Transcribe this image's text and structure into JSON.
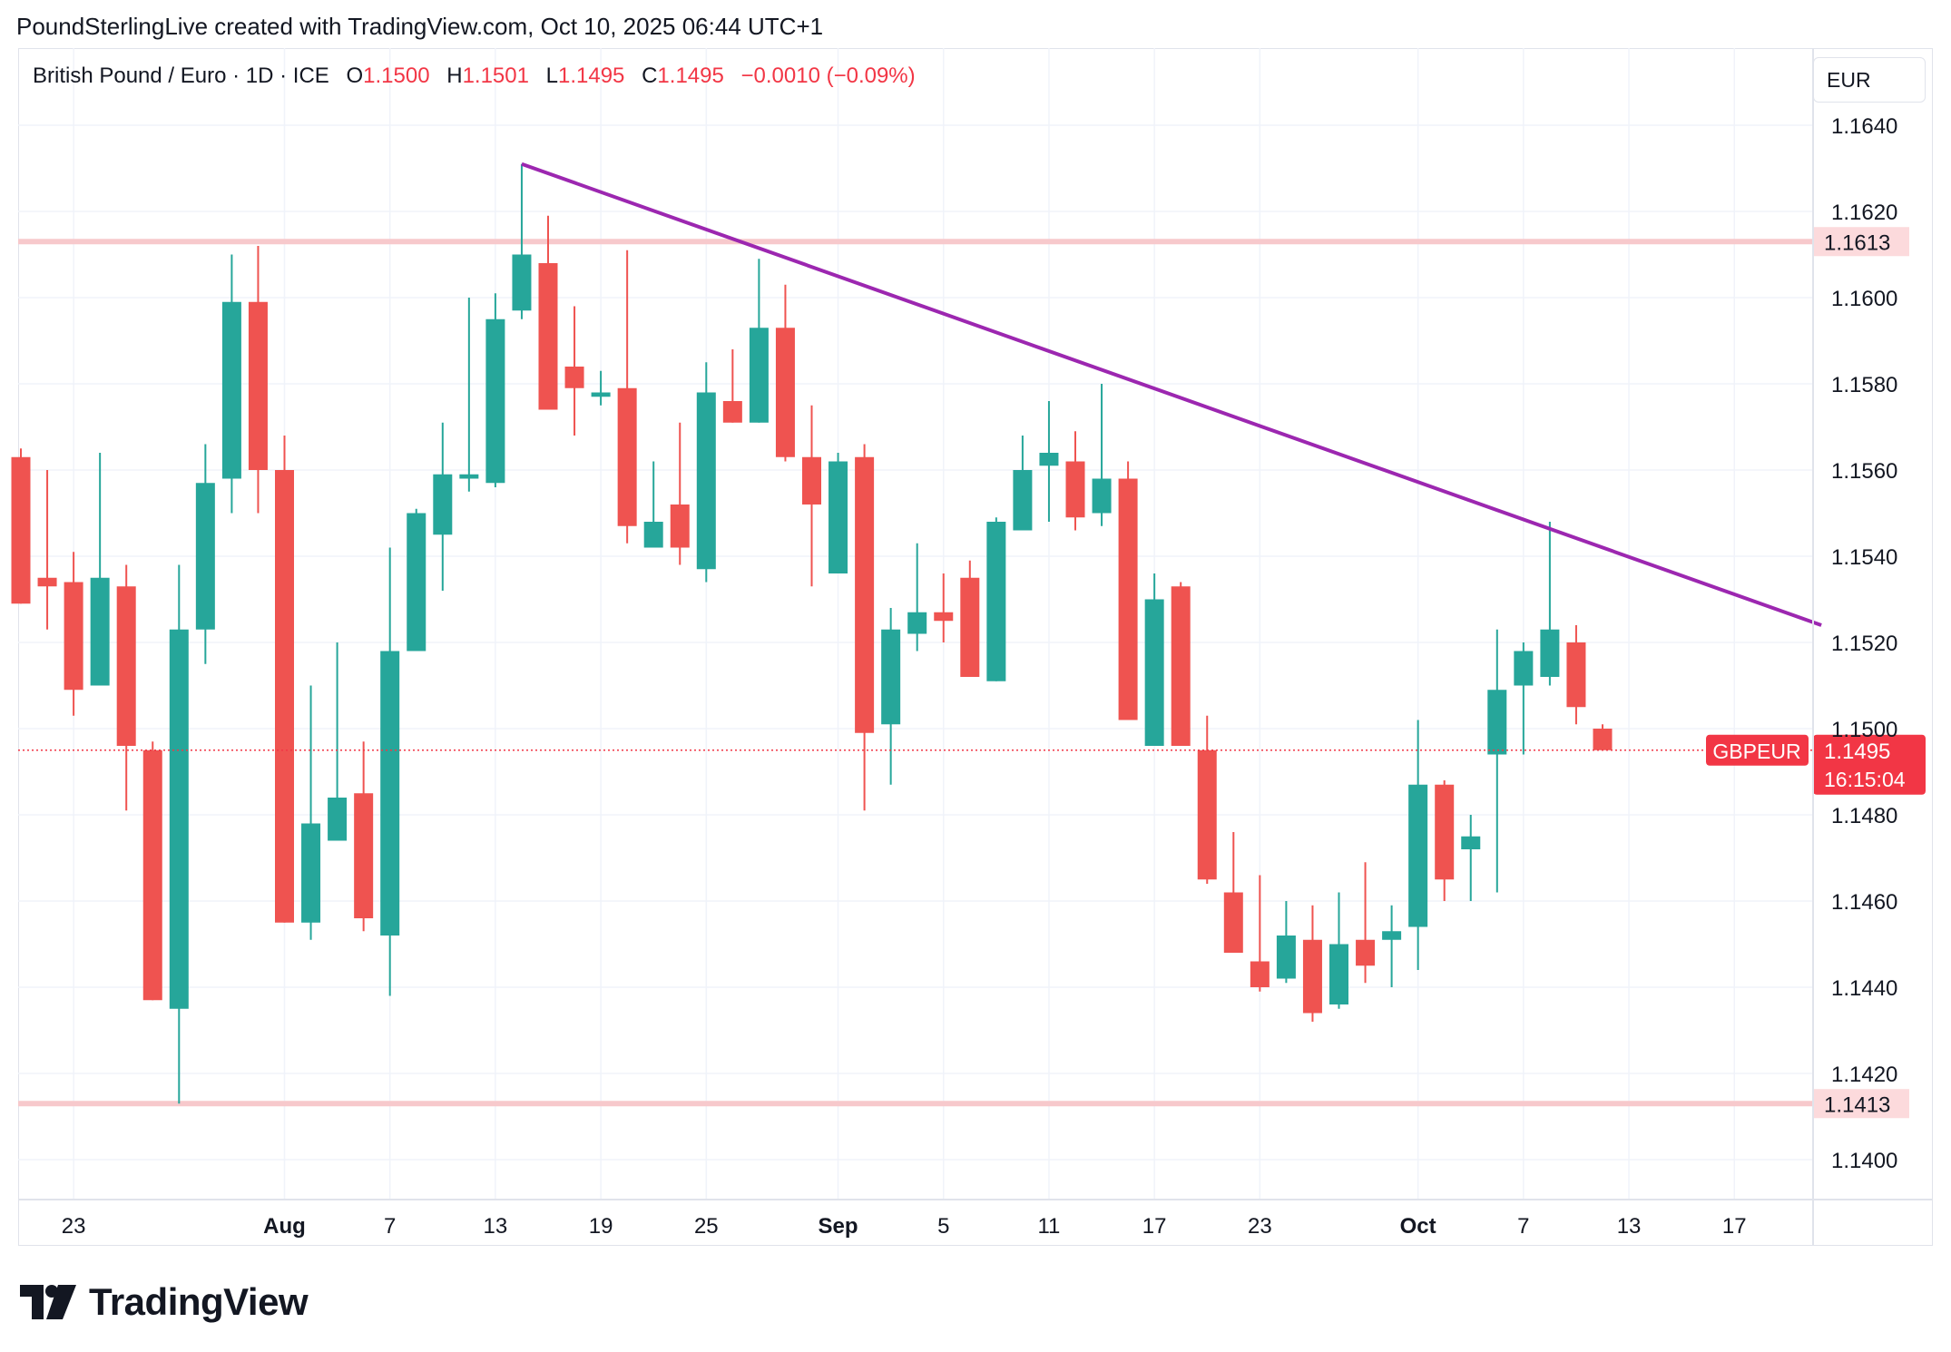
{
  "header": {
    "credit": "PoundSterlingLive created with TradingView.com, Oct 10, 2025 06:44 UTC+1"
  },
  "legend": {
    "symbol": "British Pound / Euro · 1D · ICE",
    "o_label": "O",
    "o_value": "1.1500",
    "h_label": "H",
    "h_value": "1.1501",
    "l_label": "L",
    "l_value": "1.1495",
    "c_label": "C",
    "c_value": "1.1495",
    "change": "−0.0010 (−0.09%)"
  },
  "currency_label": "EUR",
  "colors": {
    "up": "#26a69a",
    "down": "#ef5350",
    "trendline": "#9c27b0",
    "level": "#f7c9cc",
    "level_label_bg": "#fcdadc",
    "price_label_bg": "#f23645"
  },
  "footer": {
    "brand": "TradingView"
  },
  "chart_data": {
    "type": "candlestick",
    "title": "British Pound / Euro · 1D · ICE",
    "ylim": [
      1.139,
      1.165
    ],
    "y_ticks": [
      "1.1640",
      "1.1620",
      "1.1600",
      "1.1580",
      "1.1560",
      "1.1540",
      "1.1520",
      "1.1500",
      "1.1480",
      "1.1460",
      "1.1440",
      "1.1420",
      "1.1400"
    ],
    "y_tick_values": [
      1.164,
      1.162,
      1.16,
      1.158,
      1.156,
      1.154,
      1.152,
      1.15,
      1.148,
      1.146,
      1.144,
      1.142,
      1.14
    ],
    "x_ticks": [
      {
        "label": "23",
        "bold": false,
        "bar": 2
      },
      {
        "label": "Aug",
        "bold": true,
        "bar": 10
      },
      {
        "label": "7",
        "bold": false,
        "bar": 14
      },
      {
        "label": "13",
        "bold": false,
        "bar": 18
      },
      {
        "label": "19",
        "bold": false,
        "bar": 22
      },
      {
        "label": "25",
        "bold": false,
        "bar": 26
      },
      {
        "label": "Sep",
        "bold": true,
        "bar": 31
      },
      {
        "label": "5",
        "bold": false,
        "bar": 35
      },
      {
        "label": "11",
        "bold": false,
        "bar": 39
      },
      {
        "label": "17",
        "bold": false,
        "bar": 43
      },
      {
        "label": "23",
        "bold": false,
        "bar": 47
      },
      {
        "label": "Oct",
        "bold": true,
        "bar": 53
      },
      {
        "label": "7",
        "bold": false,
        "bar": 57
      },
      {
        "label": "13",
        "bold": false,
        "bar": 61
      },
      {
        "label": "17",
        "bold": false,
        "bar": 65
      }
    ],
    "candles": [
      {
        "o": 1.1563,
        "h": 1.1565,
        "l": 1.1529,
        "c": 1.1529
      },
      {
        "o": 1.1535,
        "h": 1.156,
        "l": 1.1523,
        "c": 1.1533
      },
      {
        "o": 1.1534,
        "h": 1.1541,
        "l": 1.1503,
        "c": 1.1509
      },
      {
        "o": 1.151,
        "h": 1.1564,
        "l": 1.151,
        "c": 1.1535
      },
      {
        "o": 1.1533,
        "h": 1.1538,
        "l": 1.1481,
        "c": 1.1496
      },
      {
        "o": 1.1495,
        "h": 1.1497,
        "l": 1.1437,
        "c": 1.1437
      },
      {
        "o": 1.1435,
        "h": 1.1538,
        "l": 1.1413,
        "c": 1.1523
      },
      {
        "o": 1.1523,
        "h": 1.1566,
        "l": 1.1515,
        "c": 1.1557
      },
      {
        "o": 1.1558,
        "h": 1.161,
        "l": 1.155,
        "c": 1.1599
      },
      {
        "o": 1.1599,
        "h": 1.1612,
        "l": 1.155,
        "c": 1.156
      },
      {
        "o": 1.156,
        "h": 1.1568,
        "l": 1.1455,
        "c": 1.1455
      },
      {
        "o": 1.1455,
        "h": 1.151,
        "l": 1.1451,
        "c": 1.1478
      },
      {
        "o": 1.1474,
        "h": 1.152,
        "l": 1.1474,
        "c": 1.1484
      },
      {
        "o": 1.1485,
        "h": 1.1497,
        "l": 1.1453,
        "c": 1.1456
      },
      {
        "o": 1.1452,
        "h": 1.1542,
        "l": 1.1438,
        "c": 1.1518
      },
      {
        "o": 1.1518,
        "h": 1.1551,
        "l": 1.1518,
        "c": 1.155
      },
      {
        "o": 1.1545,
        "h": 1.1571,
        "l": 1.1532,
        "c": 1.1559
      },
      {
        "o": 1.1558,
        "h": 1.16,
        "l": 1.1555,
        "c": 1.1559
      },
      {
        "o": 1.1557,
        "h": 1.1601,
        "l": 1.1556,
        "c": 1.1595
      },
      {
        "o": 1.1597,
        "h": 1.1631,
        "l": 1.1595,
        "c": 1.161
      },
      {
        "o": 1.1608,
        "h": 1.1619,
        "l": 1.1574,
        "c": 1.1574
      },
      {
        "o": 1.1584,
        "h": 1.1598,
        "l": 1.1568,
        "c": 1.1579
      },
      {
        "o": 1.1577,
        "h": 1.1583,
        "l": 1.1575,
        "c": 1.1578
      },
      {
        "o": 1.1579,
        "h": 1.1611,
        "l": 1.1543,
        "c": 1.1547
      },
      {
        "o": 1.1542,
        "h": 1.1562,
        "l": 1.1542,
        "c": 1.1548
      },
      {
        "o": 1.1552,
        "h": 1.1571,
        "l": 1.1538,
        "c": 1.1542
      },
      {
        "o": 1.1537,
        "h": 1.1585,
        "l": 1.1534,
        "c": 1.1578
      },
      {
        "o": 1.1576,
        "h": 1.1588,
        "l": 1.1571,
        "c": 1.1571
      },
      {
        "o": 1.1571,
        "h": 1.1609,
        "l": 1.1571,
        "c": 1.1593
      },
      {
        "o": 1.1593,
        "h": 1.1603,
        "l": 1.1562,
        "c": 1.1563
      },
      {
        "o": 1.1563,
        "h": 1.1575,
        "l": 1.1533,
        "c": 1.1552
      },
      {
        "o": 1.1536,
        "h": 1.1564,
        "l": 1.1536,
        "c": 1.1562
      },
      {
        "o": 1.1563,
        "h": 1.1566,
        "l": 1.1481,
        "c": 1.1499
      },
      {
        "o": 1.1501,
        "h": 1.1528,
        "l": 1.1487,
        "c": 1.1523
      },
      {
        "o": 1.1522,
        "h": 1.1543,
        "l": 1.1518,
        "c": 1.1527
      },
      {
        "o": 1.1527,
        "h": 1.1536,
        "l": 1.152,
        "c": 1.1525
      },
      {
        "o": 1.1535,
        "h": 1.1539,
        "l": 1.1512,
        "c": 1.1512
      },
      {
        "o": 1.1511,
        "h": 1.1549,
        "l": 1.1511,
        "c": 1.1548
      },
      {
        "o": 1.1546,
        "h": 1.1568,
        "l": 1.1546,
        "c": 1.156
      },
      {
        "o": 1.1561,
        "h": 1.1576,
        "l": 1.1548,
        "c": 1.1564
      },
      {
        "o": 1.1562,
        "h": 1.1569,
        "l": 1.1546,
        "c": 1.1549
      },
      {
        "o": 1.155,
        "h": 1.158,
        "l": 1.1547,
        "c": 1.1558
      },
      {
        "o": 1.1558,
        "h": 1.1562,
        "l": 1.1502,
        "c": 1.1502
      },
      {
        "o": 1.1496,
        "h": 1.1536,
        "l": 1.1496,
        "c": 1.153
      },
      {
        "o": 1.1533,
        "h": 1.1534,
        "l": 1.1496,
        "c": 1.1496
      },
      {
        "o": 1.1495,
        "h": 1.1503,
        "l": 1.1464,
        "c": 1.1465
      },
      {
        "o": 1.1462,
        "h": 1.1476,
        "l": 1.1448,
        "c": 1.1448
      },
      {
        "o": 1.1446,
        "h": 1.1466,
        "l": 1.1439,
        "c": 1.144
      },
      {
        "o": 1.1442,
        "h": 1.146,
        "l": 1.1441,
        "c": 1.1452
      },
      {
        "o": 1.1451,
        "h": 1.1459,
        "l": 1.1432,
        "c": 1.1434
      },
      {
        "o": 1.1436,
        "h": 1.1462,
        "l": 1.1435,
        "c": 1.145
      },
      {
        "o": 1.1451,
        "h": 1.1469,
        "l": 1.1441,
        "c": 1.1445
      },
      {
        "o": 1.1451,
        "h": 1.1459,
        "l": 1.144,
        "c": 1.1453
      },
      {
        "o": 1.1454,
        "h": 1.1502,
        "l": 1.1444,
        "c": 1.1487
      },
      {
        "o": 1.1487,
        "h": 1.1488,
        "l": 1.146,
        "c": 1.1465
      },
      {
        "o": 1.1472,
        "h": 1.148,
        "l": 1.146,
        "c": 1.1475
      },
      {
        "o": 1.1494,
        "h": 1.1523,
        "l": 1.1462,
        "c": 1.1509
      },
      {
        "o": 1.151,
        "h": 1.152,
        "l": 1.1494,
        "c": 1.1518
      },
      {
        "o": 1.1512,
        "h": 1.1548,
        "l": 1.151,
        "c": 1.1523
      },
      {
        "o": 1.152,
        "h": 1.1524,
        "l": 1.1501,
        "c": 1.1505
      },
      {
        "o": 1.15,
        "h": 1.1501,
        "l": 1.1495,
        "c": 1.1495
      }
    ],
    "resistance_level": {
      "value": 1.1613,
      "label": "1.1613"
    },
    "support_level": {
      "value": 1.1413,
      "label": "1.1413"
    },
    "trendline": {
      "start_bar": 19,
      "start_value": 1.1631,
      "end_bar": 68.3,
      "end_value": 1.1524
    },
    "last_price": {
      "symbol": "GBPEUR",
      "value": "1.1495",
      "countdown": "16:15:04",
      "y": 1.1495
    }
  }
}
